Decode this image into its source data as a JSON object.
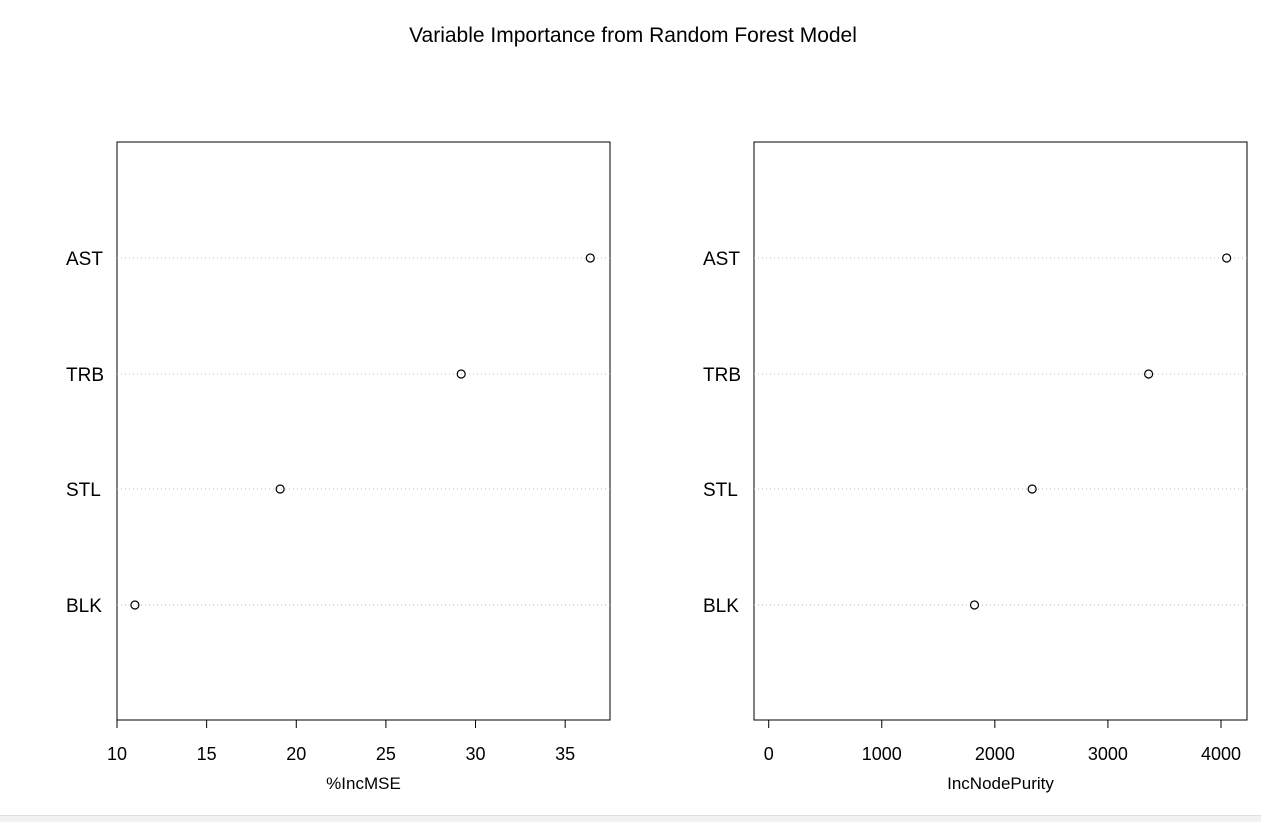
{
  "title": "Variable Importance from Random Forest Model",
  "chart_data": [
    {
      "type": "scatter",
      "variant": "dotchart",
      "categories": [
        "AST",
        "TRB",
        "STL",
        "BLK"
      ],
      "values": [
        36.4,
        29.2,
        19.1,
        11.0
      ],
      "xlabel": "%IncMSE",
      "ylabel": "",
      "xticks": [
        10,
        15,
        20,
        25,
        30,
        35
      ],
      "xlim": [
        10,
        37.5
      ],
      "grid": "dotted horizontal"
    },
    {
      "type": "scatter",
      "variant": "dotchart",
      "categories": [
        "AST",
        "TRB",
        "STL",
        "BLK"
      ],
      "values": [
        4050,
        3360,
        2330,
        1820
      ],
      "xlabel": "IncNodePurity",
      "ylabel": "",
      "xticks": [
        0,
        1000,
        2000,
        3000,
        4000
      ],
      "xlim": [
        -130,
        4230
      ],
      "grid": "dotted horizontal"
    }
  ],
  "colors": {
    "axis": "#000000",
    "grid": "#bebebe",
    "point": "#000000"
  }
}
